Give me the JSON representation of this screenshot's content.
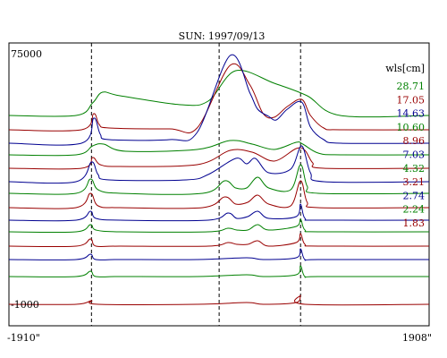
{
  "chart_data": {
    "type": "line",
    "title": "SUN: 1997/09/13",
    "ylabel_top": "75000",
    "ylabel_bottom": "-1000",
    "xlabel_left": "-1910\"",
    "xlabel_right": "1908\"",
    "legend_title": "wls[cm]",
    "x_range": [
      -1910,
      1908
    ],
    "dashed_lines_x": [
      -1160,
      0,
      740
    ],
    "colors": {
      "green": "#008000",
      "red": "#990000",
      "blue": "#000090"
    },
    "series": [
      {
        "name": "28.71",
        "color": "green",
        "baseline": 129,
        "profile": [
          [
            -1910,
            0
          ],
          [
            -1300,
            0
          ],
          [
            -1150,
            14
          ],
          [
            -1060,
            26
          ],
          [
            -900,
            22
          ],
          [
            -350,
            12
          ],
          [
            -100,
            16
          ],
          [
            150,
            50
          ],
          [
            500,
            36
          ],
          [
            800,
            22
          ],
          [
            1100,
            0
          ],
          [
            1908,
            0
          ]
        ]
      },
      {
        "name": "17.05",
        "color": "red",
        "baseline": 145,
        "profile": [
          [
            -1910,
            0
          ],
          [
            -1250,
            0
          ],
          [
            -1140,
            18
          ],
          [
            -1090,
            6
          ],
          [
            -1000,
            2
          ],
          [
            -450,
            1
          ],
          [
            -200,
            2
          ],
          [
            100,
            72
          ],
          [
            280,
            50
          ],
          [
            400,
            18
          ],
          [
            500,
            14
          ],
          [
            620,
            26
          ],
          [
            750,
            34
          ],
          [
            830,
            16
          ],
          [
            950,
            2
          ],
          [
            1100,
            0
          ],
          [
            1908,
            0
          ]
        ]
      },
      {
        "name": "14.63",
        "color": "blue",
        "baseline": 160,
        "profile": [
          [
            -1910,
            0
          ],
          [
            -1250,
            0
          ],
          [
            -1140,
            28
          ],
          [
            -1080,
            10
          ],
          [
            -1000,
            4
          ],
          [
            -450,
            4
          ],
          [
            -200,
            12
          ],
          [
            100,
            98
          ],
          [
            280,
            56
          ],
          [
            350,
            38
          ],
          [
            450,
            30
          ],
          [
            520,
            26
          ],
          [
            620,
            38
          ],
          [
            750,
            46
          ],
          [
            830,
            18
          ],
          [
            950,
            4
          ],
          [
            1100,
            0
          ],
          [
            1908,
            0
          ]
        ]
      },
      {
        "name": "10.60",
        "color": "green",
        "baseline": 173,
        "profile": [
          [
            -1910,
            0
          ],
          [
            -1300,
            0
          ],
          [
            -1150,
            10
          ],
          [
            -1050,
            12
          ],
          [
            -850,
            4
          ],
          [
            -200,
            6
          ],
          [
            100,
            16
          ],
          [
            300,
            12
          ],
          [
            500,
            6
          ],
          [
            700,
            14
          ],
          [
            760,
            12
          ],
          [
            900,
            2
          ],
          [
            1100,
            0
          ],
          [
            1908,
            0
          ]
        ]
      },
      {
        "name": "8.96",
        "color": "red",
        "baseline": 188,
        "profile": [
          [
            -1910,
            0
          ],
          [
            -1250,
            0
          ],
          [
            -1150,
            12
          ],
          [
            -1080,
            4
          ],
          [
            -900,
            2
          ],
          [
            -200,
            4
          ],
          [
            100,
            20
          ],
          [
            300,
            18
          ],
          [
            500,
            8
          ],
          [
            700,
            22
          ],
          [
            780,
            20
          ],
          [
            850,
            6
          ],
          [
            950,
            0
          ],
          [
            1908,
            0
          ]
        ]
      },
      {
        "name": "7.03",
        "color": "blue",
        "baseline": 203,
        "profile": [
          [
            -1910,
            0
          ],
          [
            -1300,
            0
          ],
          [
            -1160,
            22
          ],
          [
            -1100,
            8
          ],
          [
            -1000,
            2
          ],
          [
            -300,
            2
          ],
          [
            -100,
            8
          ],
          [
            150,
            26
          ],
          [
            250,
            20
          ],
          [
            330,
            26
          ],
          [
            450,
            10
          ],
          [
            650,
            14
          ],
          [
            750,
            40
          ],
          [
            830,
            10
          ],
          [
            950,
            0
          ],
          [
            1908,
            0
          ]
        ]
      },
      {
        "name": "4.32",
        "color": "green",
        "baseline": 216,
        "profile": [
          [
            -1910,
            0
          ],
          [
            -1300,
            0
          ],
          [
            -1170,
            16
          ],
          [
            -1100,
            4
          ],
          [
            -900,
            0
          ],
          [
            -150,
            0
          ],
          [
            50,
            14
          ],
          [
            150,
            6
          ],
          [
            250,
            6
          ],
          [
            350,
            18
          ],
          [
            450,
            6
          ],
          [
            650,
            4
          ],
          [
            740,
            32
          ],
          [
            800,
            8
          ],
          [
            900,
            0
          ],
          [
            1908,
            0
          ]
        ]
      },
      {
        "name": "3.21",
        "color": "red",
        "baseline": 232,
        "profile": [
          [
            -1910,
            0
          ],
          [
            -1300,
            0
          ],
          [
            -1170,
            16
          ],
          [
            -1100,
            2
          ],
          [
            -900,
            0
          ],
          [
            -150,
            0
          ],
          [
            50,
            12
          ],
          [
            150,
            4
          ],
          [
            260,
            6
          ],
          [
            350,
            14
          ],
          [
            450,
            4
          ],
          [
            650,
            2
          ],
          [
            740,
            30
          ],
          [
            800,
            6
          ],
          [
            900,
            0
          ],
          [
            1908,
            0
          ]
        ]
      },
      {
        "name": "2.74",
        "color": "blue",
        "baseline": 246,
        "profile": [
          [
            -1910,
            0
          ],
          [
            -1300,
            0
          ],
          [
            -1170,
            10
          ],
          [
            -1120,
            2
          ],
          [
            -900,
            0
          ],
          [
            -100,
            0
          ],
          [
            80,
            8
          ],
          [
            160,
            2
          ],
          [
            260,
            4
          ],
          [
            350,
            10
          ],
          [
            450,
            2
          ],
          [
            700,
            4
          ],
          [
            740,
            18
          ],
          [
            780,
            2
          ],
          [
            900,
            0
          ],
          [
            1908,
            0
          ]
        ]
      },
      {
        "name": "2.24",
        "color": "green",
        "baseline": 259,
        "profile": [
          [
            -1910,
            0
          ],
          [
            -1300,
            0
          ],
          [
            -1170,
            8
          ],
          [
            -1120,
            2
          ],
          [
            -900,
            0
          ],
          [
            -100,
            0
          ],
          [
            80,
            4
          ],
          [
            160,
            2
          ],
          [
            260,
            2
          ],
          [
            350,
            8
          ],
          [
            450,
            2
          ],
          [
            700,
            6
          ],
          [
            740,
            14
          ],
          [
            780,
            2
          ],
          [
            900,
            0
          ],
          [
            1908,
            0
          ]
        ]
      },
      {
        "name": "1.83",
        "color": "red",
        "baseline": 275,
        "profile": [
          [
            -1910,
            0
          ],
          [
            -1300,
            0
          ],
          [
            -1170,
            8
          ],
          [
            -1120,
            0
          ],
          [
            -900,
            0
          ],
          [
            -100,
            0
          ],
          [
            80,
            4
          ],
          [
            160,
            2
          ],
          [
            260,
            2
          ],
          [
            350,
            6
          ],
          [
            450,
            0
          ],
          [
            700,
            4
          ],
          [
            740,
            14
          ],
          [
            780,
            2
          ],
          [
            900,
            0
          ],
          [
            1908,
            0
          ]
        ]
      },
      {
        "name": "",
        "color": "blue",
        "baseline": 290,
        "profile": [
          [
            -1910,
            0
          ],
          [
            -1300,
            0
          ],
          [
            -1170,
            6
          ],
          [
            -1120,
            0
          ],
          [
            -900,
            0
          ],
          [
            -200,
            0
          ],
          [
            250,
            2
          ],
          [
            400,
            0
          ],
          [
            700,
            2
          ],
          [
            740,
            12
          ],
          [
            780,
            0
          ],
          [
            900,
            0
          ],
          [
            1908,
            0
          ]
        ]
      },
      {
        "name": "",
        "color": "green",
        "baseline": 309,
        "profile": [
          [
            -1910,
            0
          ],
          [
            -1300,
            0
          ],
          [
            -1170,
            6
          ],
          [
            -1120,
            0
          ],
          [
            -900,
            0
          ],
          [
            -200,
            0
          ],
          [
            250,
            2
          ],
          [
            400,
            0
          ],
          [
            700,
            2
          ],
          [
            740,
            12
          ],
          [
            780,
            0
          ],
          [
            900,
            0
          ],
          [
            1908,
            0
          ]
        ]
      },
      {
        "name": "",
        "color": "red",
        "baseline": 340,
        "profile": [
          [
            -1910,
            0
          ],
          [
            -1300,
            0
          ],
          [
            -1160,
            4
          ],
          [
            -1100,
            0
          ],
          [
            -200,
            0
          ],
          [
            250,
            2
          ],
          [
            400,
            0
          ],
          [
            700,
            2
          ],
          [
            740,
            10
          ],
          [
            780,
            0
          ],
          [
            1908,
            0
          ]
        ]
      }
    ]
  }
}
